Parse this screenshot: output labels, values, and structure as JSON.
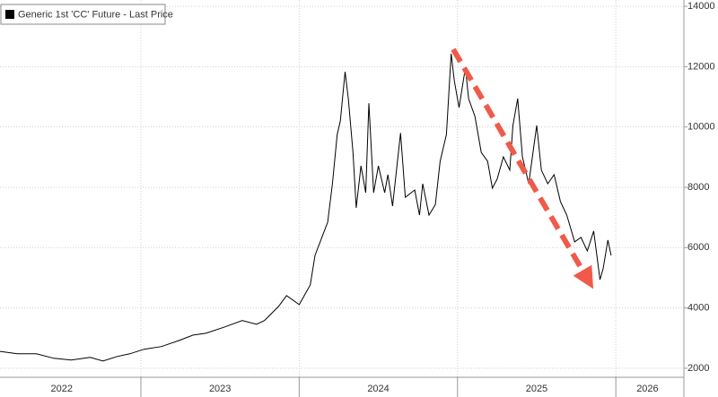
{
  "chart_data": {
    "type": "line",
    "x": [
      2022.11,
      2022.22,
      2022.34,
      2022.45,
      2022.56,
      2022.68,
      2022.76,
      2022.85,
      2022.93,
      2023.02,
      2023.13,
      2023.24,
      2023.33,
      2023.41,
      2023.53,
      2023.64,
      2023.73,
      2023.78,
      2023.87,
      2023.92,
      2024.0,
      2024.07,
      2024.1,
      2024.15,
      2024.18,
      2024.21,
      2024.24,
      2024.26,
      2024.29,
      2024.31,
      2024.34,
      2024.36,
      2024.39,
      2024.42,
      2024.44,
      2024.47,
      2024.5,
      2024.54,
      2024.56,
      2024.59,
      2024.64,
      2024.67,
      2024.73,
      2024.76,
      2024.78,
      2024.82,
      2024.86,
      2024.89,
      2024.93,
      2024.96,
      2024.98,
      2025.01,
      2025.05,
      2025.07,
      2025.11,
      2025.15,
      2025.19,
      2025.22,
      2025.25,
      2025.29,
      2025.33,
      2025.35,
      2025.38,
      2025.41,
      2025.45,
      2025.5,
      2025.53,
      2025.57,
      2025.61,
      2025.65,
      2025.69,
      2025.74,
      2025.78,
      2025.82,
      2025.86,
      2025.9,
      2025.92,
      2025.95,
      2025.97
    ],
    "series": [
      {
        "name": "Generic 1st 'CC' Future - Last Price",
        "color": "#000000",
        "values": [
          2560,
          2480,
          2480,
          2330,
          2270,
          2360,
          2240,
          2390,
          2480,
          2630,
          2720,
          2920,
          3100,
          3160,
          3370,
          3580,
          3460,
          3580,
          4050,
          4410,
          4110,
          4760,
          5740,
          6430,
          6840,
          8120,
          9750,
          10200,
          11830,
          10940,
          9160,
          7320,
          8710,
          7820,
          10790,
          7820,
          8710,
          7820,
          8420,
          7380,
          9800,
          7670,
          7910,
          7080,
          8120,
          7080,
          7430,
          8860,
          9750,
          12430,
          11530,
          10640,
          11980,
          10940,
          10350,
          9160,
          8860,
          7970,
          8270,
          9010,
          8570,
          10050,
          10940,
          9010,
          8120,
          10050,
          8570,
          8120,
          8420,
          7530,
          7080,
          6190,
          6340,
          5890,
          6550,
          4940,
          5300,
          6250,
          5740
        ]
      }
    ],
    "xlim": [
      2022.11,
      2026.43
    ],
    "xticks": [
      2023,
      2024,
      2025,
      2026
    ],
    "x_labels": [
      {
        "value": 2022.5,
        "label": "2022"
      },
      {
        "value": 2023.5,
        "label": "2023"
      },
      {
        "value": 2024.5,
        "label": "2024"
      },
      {
        "value": 2025.5,
        "label": "2025"
      },
      {
        "value": 2026.2,
        "label": "2026"
      }
    ],
    "ylim": [
      1730,
      14210
    ],
    "yticks": [
      2000,
      4000,
      6000,
      8000,
      10000,
      12000,
      14000
    ],
    "grid": true
  }
}
